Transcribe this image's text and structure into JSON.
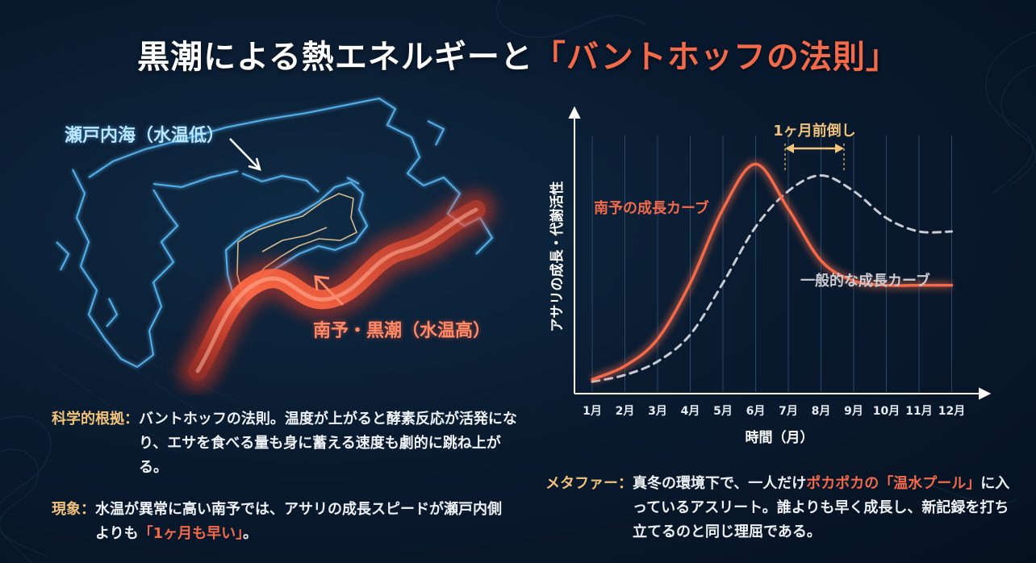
{
  "title": {
    "main": "黒潮による熱エネルギーと",
    "highlight": "「バントホッフの法則」"
  },
  "map": {
    "label_seto": "瀬戸内海（水温低）",
    "label_nanyo": "南予・黒潮（水温高）",
    "colors": {
      "coast": "#4fb3ff",
      "current": "#ff5a3a"
    }
  },
  "chart_data": {
    "type": "line",
    "title": "",
    "xlabel": "時間（月）",
    "ylabel": "アサリの成長・代謝活性",
    "categories": [
      "1月",
      "2月",
      "3月",
      "4月",
      "5月",
      "6月",
      "7月",
      "8月",
      "9月",
      "10月",
      "11月",
      "12月"
    ],
    "series": [
      {
        "name": "南予の成長カーブ",
        "style": "solid",
        "color": "#f26a4a",
        "values": [
          0.02,
          0.08,
          0.2,
          0.45,
          0.78,
          0.98,
          0.78,
          0.55,
          0.46,
          0.44,
          0.44,
          0.44
        ]
      },
      {
        "name": "一般的な成長カーブ",
        "style": "dashed",
        "color": "#c9ccd2",
        "values": [
          0.01,
          0.04,
          0.1,
          0.22,
          0.45,
          0.7,
          0.86,
          0.93,
          0.86,
          0.74,
          0.68,
          0.68
        ]
      }
    ],
    "annotation": {
      "text": "1ヶ月前倒し",
      "from": "7月",
      "to": "9月"
    },
    "grid": "vertical"
  },
  "text": {
    "science_key": "科学的根拠：",
    "science_body": "バントホッフの法則。温度が上がると酵素反応が活発になり、エサを食べる量も身に蓄える速度も劇的に跳ね上がる。",
    "phenom_key": "現象：",
    "phenom_body_1": "水温が異常に高い南予では、アサリの成長スピードが瀬戸内側よりも",
    "phenom_body_accent": "「1ヶ月も早い」",
    "phenom_body_2": "。",
    "meta_key": "メタファー：",
    "meta_body_1": "真冬の環境下で、一人だけ",
    "meta_body_accent": "ポカポカの「温水プール」",
    "meta_body_2": "に入っているアスリート。誰よりも早く成長し、新記録を打ち立てるのと同じ理屈である。"
  }
}
